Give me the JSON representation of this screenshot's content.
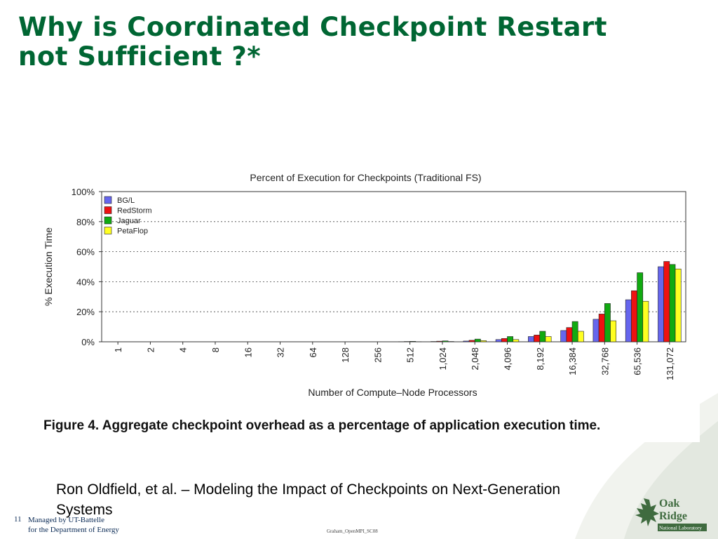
{
  "slide": {
    "title_line1": "Why is Coordinated Checkpoint Restart",
    "title_line2": "not Sufficient ?*",
    "citation": "Ron Oldfield, et al. – Modeling the Impact of Checkpoints on Next-Generation Systems",
    "footer_page": "11",
    "footer_managed_line1": "Managed by UT-Battelle",
    "footer_managed_line2": "for the Department of Energy",
    "footer_center": "Graham_OpenMPI_SC08",
    "logo_line1": "Oak",
    "logo_line2": "Ridge",
    "logo_line3": "National Laboratory",
    "title_color": "#006633"
  },
  "figure": {
    "caption": "Figure 4. Aggregate checkpoint overhead as a percentage of application execution time."
  },
  "chart_data": {
    "type": "bar",
    "title": "Percent of Execution for Checkpoints (Traditional FS)",
    "xlabel": "Number of Compute–Node Processors",
    "ylabel": "% Execution Time",
    "categories": [
      "1",
      "2",
      "4",
      "8",
      "16",
      "32",
      "64",
      "128",
      "256",
      "512",
      "1,024",
      "2,048",
      "4,096",
      "8,192",
      "16,384",
      "32,768",
      "65,536",
      "131,072"
    ],
    "y_ticks": [
      "0%",
      "20%",
      "40%",
      "60%",
      "80%",
      "100%"
    ],
    "ylim": [
      0,
      100
    ],
    "grid": "horizontal dashed",
    "legend_position": "top-left",
    "series": [
      {
        "name": "BG/L",
        "color": "#6666ee",
        "values": [
          0,
          0,
          0,
          0,
          0,
          0,
          0,
          0,
          0,
          0.1,
          0.2,
          0.5,
          1.5,
          3.5,
          7.5,
          15,
          28,
          50
        ]
      },
      {
        "name": "RedStorm",
        "color": "#ee1111",
        "values": [
          0,
          0,
          0,
          0,
          0,
          0,
          0,
          0,
          0,
          0.2,
          0.4,
          1,
          2.2,
          4.5,
          9.5,
          18.5,
          34,
          53.5
        ]
      },
      {
        "name": "Jaguar",
        "color": "#11aa11",
        "values": [
          0,
          0,
          0,
          0,
          0,
          0,
          0,
          0,
          0,
          0.3,
          0.6,
          1.8,
          3.5,
          7,
          13.5,
          25.5,
          46,
          51.5
        ]
      },
      {
        "name": "PetaFlop",
        "color": "#ffff22",
        "values": [
          0,
          0,
          0,
          0,
          0,
          0,
          0,
          0,
          0,
          0.1,
          0.2,
          0.8,
          1.5,
          3.5,
          7,
          14,
          27,
          48.5
        ]
      }
    ]
  }
}
